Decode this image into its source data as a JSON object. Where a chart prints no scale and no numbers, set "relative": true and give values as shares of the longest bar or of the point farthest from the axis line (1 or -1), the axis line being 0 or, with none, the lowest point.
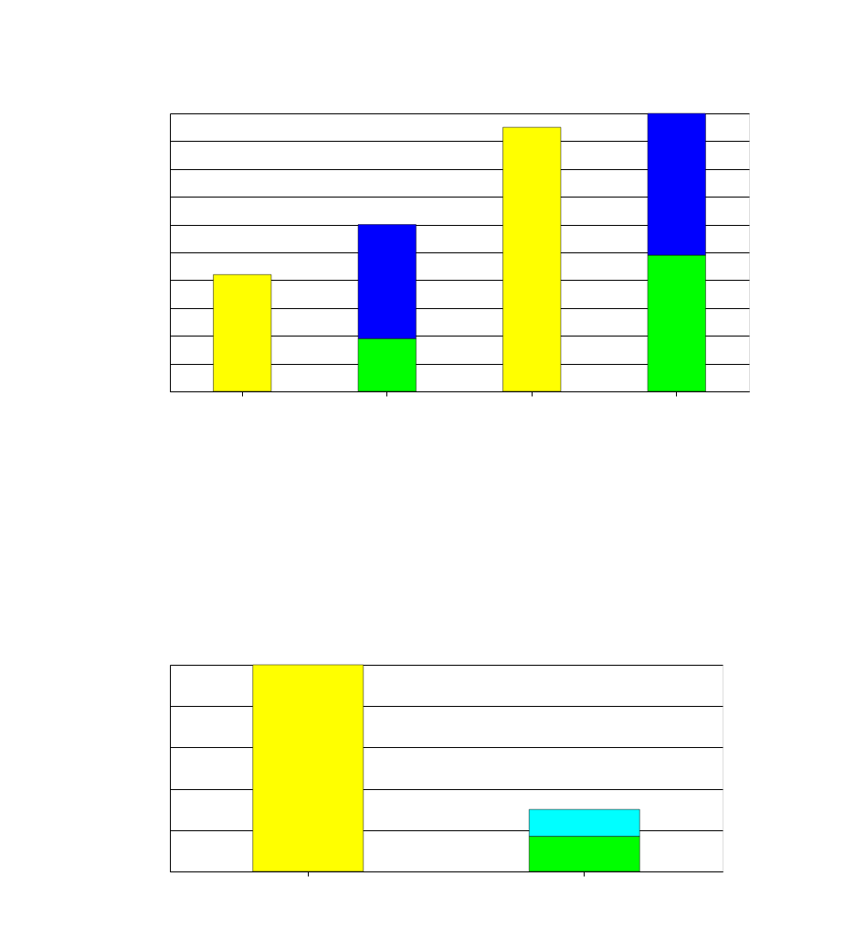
{
  "chart_data": [
    {
      "type": "bar",
      "relative": true,
      "stacked": true,
      "categories": [
        null,
        null,
        null,
        null
      ],
      "grid": "y",
      "series": [
        {
          "color": "#ffff00",
          "values": [
            0.42,
            null,
            0.95,
            null
          ]
        },
        {
          "color": "#00ff00",
          "values": [
            null,
            0.19,
            null,
            0.49
          ]
        },
        {
          "color": "#0000ff",
          "values": [
            null,
            0.41,
            null,
            0.51
          ]
        }
      ]
    },
    {
      "type": "bar",
      "relative": true,
      "stacked": true,
      "categories": [
        null,
        null
      ],
      "grid": "y",
      "series": [
        {
          "color": "#ffff00",
          "values": [
            1,
            null
          ]
        },
        {
          "color": "#00ff00",
          "values": [
            null,
            0.17
          ]
        },
        {
          "color": "#00ffff",
          "values": [
            null,
            0.13
          ]
        }
      ]
    }
  ]
}
